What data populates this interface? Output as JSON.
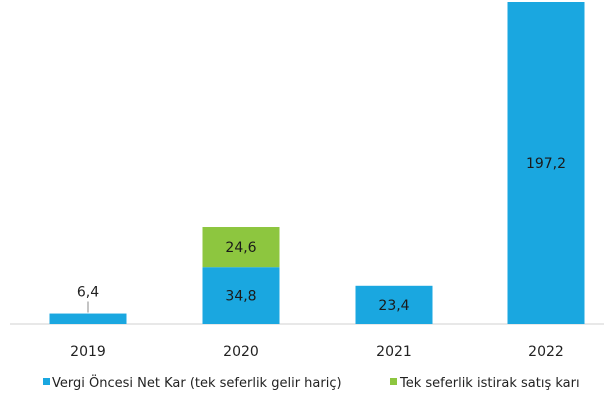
{
  "chart_data": {
    "type": "bar",
    "stacked": true,
    "categories": [
      "2019",
      "2020",
      "2021",
      "2022"
    ],
    "series": [
      {
        "name": "Vergi Öncesi Net Kar (tek seferlik gelir hariç)",
        "color": "#1aa7e0",
        "values": [
          6.4,
          34.8,
          23.4,
          197.2
        ],
        "labels": [
          "6,4",
          "34,8",
          "23,4",
          "197,2"
        ]
      },
      {
        "name": "Tek seferlik istirak satış karı",
        "color": "#8dc63f",
        "values": [
          0,
          24.6,
          0,
          0
        ],
        "labels": [
          "",
          "24,6",
          "",
          ""
        ]
      }
    ],
    "ylim": [
      0,
      197.2
    ],
    "grid": false,
    "legend_position": "bottom"
  }
}
